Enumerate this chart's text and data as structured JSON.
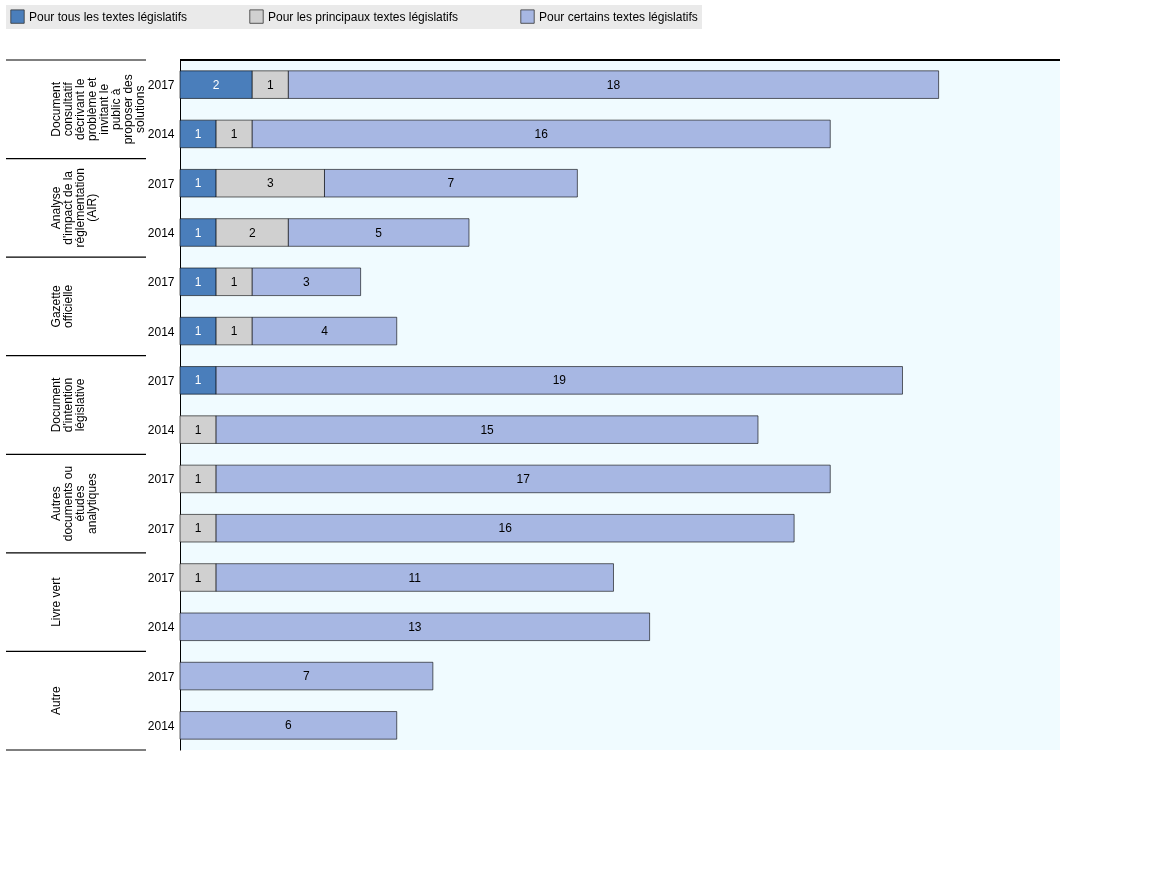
{
  "chart_data": {
    "type": "bar",
    "orientation": "horizontal",
    "stacked": true,
    "data_labels": true,
    "legend": "top",
    "categories": [
      "2017",
      "2014",
      "2017",
      "2014",
      "2017",
      "2014",
      "2017",
      "2014",
      "2017",
      "2017",
      "2017",
      "2014",
      "2017",
      "2014"
    ],
    "annotations": [
      "Document consultatif décrivant le problème et invitant le public à proposer des solutions",
      "Analyse d'impact de la réglementation (AIR)",
      "Gazette officielle",
      "Document d'intention législative",
      "Autres documents ou études analytiques",
      "Livre vert",
      "Autre"
    ],
    "series": [
      {
        "name": "Pour tous les textes législatifs",
        "color": "#4a7ebb",
        "values": [
          2,
          1,
          1,
          1,
          1,
          1,
          1,
          null,
          null,
          null,
          null,
          null,
          null,
          null
        ]
      },
      {
        "name": "Pour les principaux textes législatifs",
        "color": "#d0d0d0",
        "values": [
          1,
          1,
          3,
          2,
          1,
          1,
          null,
          1,
          1,
          1,
          1,
          null,
          null,
          null
        ]
      },
      {
        "name": "Pour certains textes législatifs",
        "color": "#a7b7e3",
        "values": [
          18,
          16,
          7,
          5,
          3,
          4,
          19,
          15,
          17,
          16,
          11,
          13,
          7,
          6
        ]
      }
    ]
  }
}
